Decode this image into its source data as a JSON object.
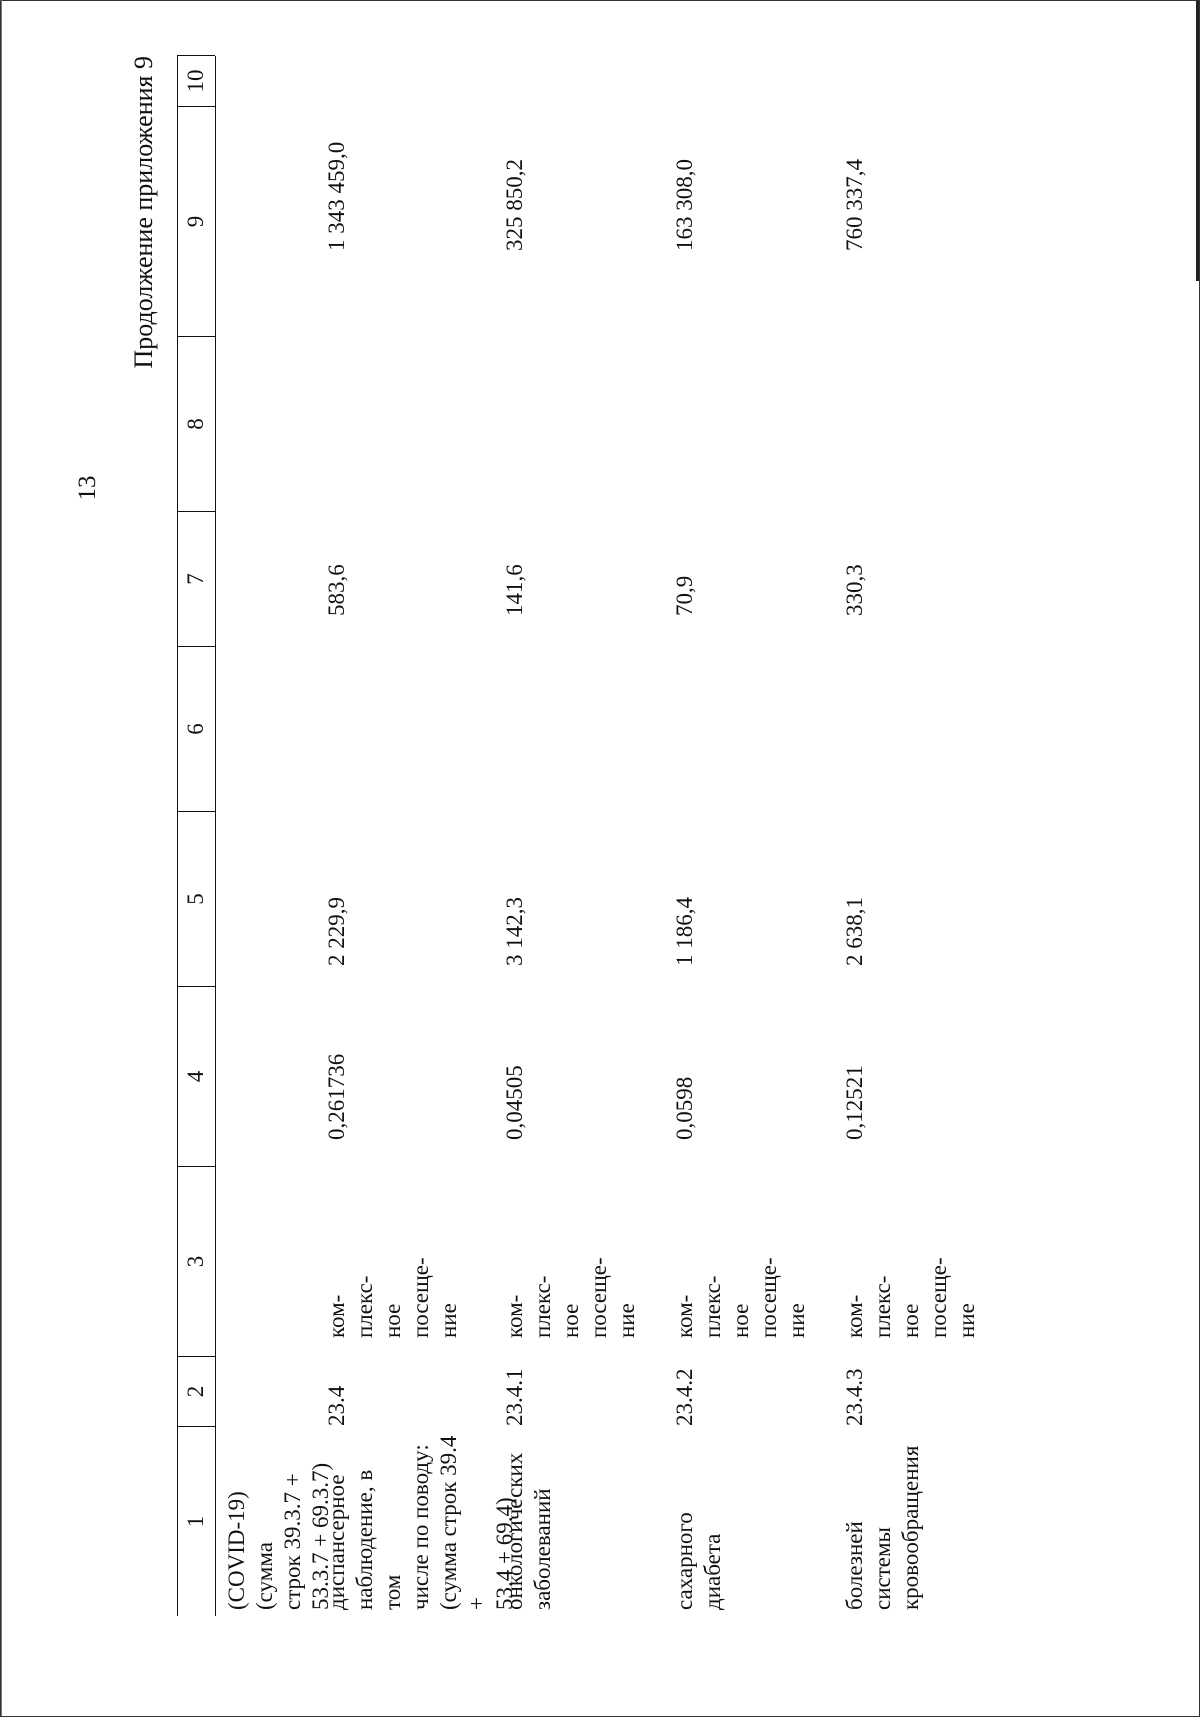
{
  "page": {
    "number": "13",
    "appendix_note": "Продолжение приложения 9"
  },
  "table": {
    "header": [
      "1",
      "2",
      "3",
      "4",
      "5",
      "6",
      "7",
      "8",
      "9",
      "10"
    ],
    "rows": [
      {
        "col1": [
          "(COVID-19) (сумма",
          "строк 39.3.7 +",
          "53.3.7 + 69.3.7)"
        ],
        "col2": "",
        "col3": [],
        "col4": "",
        "col5": "",
        "col7": "",
        "col9": ""
      },
      {
        "col1": [
          "диспансерное",
          "наблюдение, в том",
          "числе по поводу:",
          "(сумма строк 39.4 +",
          "53.4 + 69.4)"
        ],
        "col2": "23.4",
        "col3": [
          "ком-",
          "плекс-",
          "ное",
          "посеще-",
          "ние"
        ],
        "col4": "0,261736",
        "col5": "2 229,9",
        "col7": "583,6",
        "col9": "1 343 459,0"
      },
      {
        "col1": [
          "онкологических",
          "заболеваний"
        ],
        "col2": "23.4.1",
        "col3": [
          "ком-",
          "плекс-",
          "ное",
          "посеще-",
          "ние"
        ],
        "col4": "0,04505",
        "col5": "3 142,3",
        "col7": "141,6",
        "col9": "325 850,2"
      },
      {
        "col1": [
          "сахарного диабета"
        ],
        "col2": "23.4.2",
        "col3": [
          "ком-",
          "плекс-",
          "ное",
          "посеще-",
          "ние"
        ],
        "col4": "0,0598",
        "col5": "1 186,4",
        "col7": "70,9",
        "col9": "163 308,0"
      },
      {
        "col1": [
          "болезней системы",
          "кровообращения"
        ],
        "col2": "23.4.3",
        "col3": [
          "ком-",
          "плекс-",
          "ное",
          "посеще-",
          "ние"
        ],
        "col4": "0,12521",
        "col5": "2 638,1",
        "col7": "330,3",
        "col9": "760 337,4"
      }
    ]
  }
}
